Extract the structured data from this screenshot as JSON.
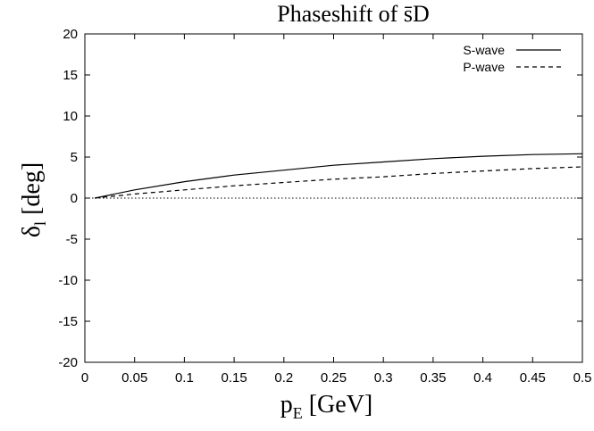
{
  "chart_data": {
    "type": "line",
    "title": "Phaseshift of s̄D",
    "xlabel": {
      "main": "p",
      "sub": "E",
      "unit": " [GeV]"
    },
    "ylabel": {
      "main": "δ",
      "sub": "l",
      "unit": " [deg]"
    },
    "xlim": [
      0,
      0.5
    ],
    "ylim": [
      -20,
      20
    ],
    "xticks": [
      0,
      0.05,
      0.1,
      0.15,
      0.2,
      0.25,
      0.3,
      0.35,
      0.4,
      0.45,
      0.5
    ],
    "xtick_labels": [
      "0",
      "0.05",
      "0.1",
      "0.15",
      "0.2",
      "0.25",
      "0.3",
      "0.35",
      "0.4",
      "0.45",
      "0.5"
    ],
    "yticks": [
      -20,
      -15,
      -10,
      -5,
      0,
      5,
      10,
      15,
      20
    ],
    "ytick_labels": [
      "-20",
      "-15",
      "-10",
      "-5",
      "0",
      "5",
      "10",
      "15",
      "20"
    ],
    "grid": false,
    "legend_position": "top-right",
    "zero_line": {
      "y": 0,
      "style": "dotted"
    },
    "series": [
      {
        "name": "S-wave",
        "style": "solid",
        "color": "#000000",
        "x": [
          0.01,
          0.05,
          0.1,
          0.15,
          0.2,
          0.25,
          0.3,
          0.35,
          0.4,
          0.45,
          0.5
        ],
        "y": [
          0.0,
          1.0,
          2.0,
          2.8,
          3.4,
          4.0,
          4.4,
          4.8,
          5.1,
          5.3,
          5.4
        ]
      },
      {
        "name": "P-wave",
        "style": "dashed",
        "color": "#000000",
        "x": [
          0.01,
          0.05,
          0.1,
          0.15,
          0.2,
          0.25,
          0.3,
          0.35,
          0.4,
          0.45,
          0.5
        ],
        "y": [
          0.0,
          0.5,
          1.0,
          1.5,
          1.9,
          2.3,
          2.6,
          3.0,
          3.3,
          3.6,
          3.8
        ]
      }
    ]
  }
}
